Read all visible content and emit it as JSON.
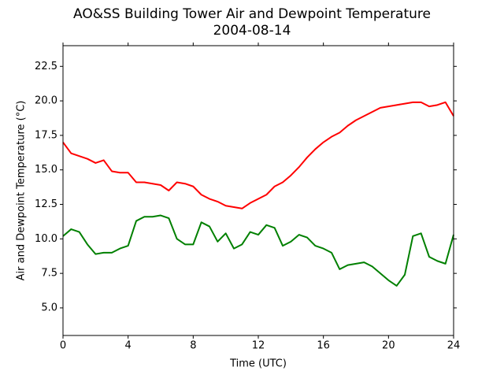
{
  "chart_data": {
    "type": "line",
    "title": "AO&SS Building Tower Air and Dewpoint Temperature",
    "subtitle": "2004-08-14",
    "x_label": "Time (UTC)",
    "y_label": "Air and Dewpoint Temperature (°C)",
    "x": [
      0,
      0.5,
      1,
      1.5,
      2,
      2.5,
      3,
      3.5,
      4,
      4.5,
      5,
      5.5,
      6,
      6.5,
      7,
      7.5,
      8,
      8.5,
      9,
      9.5,
      10,
      10.5,
      11,
      11.5,
      12,
      12.5,
      13,
      13.5,
      14,
      14.5,
      15,
      15.5,
      16,
      16.5,
      17,
      17.5,
      18,
      18.5,
      19,
      19.5,
      20,
      20.5,
      21,
      21.5,
      22,
      22.5,
      23,
      23.5,
      24
    ],
    "series": [
      {
        "color": "#ff0000",
        "values": [
          17.0,
          16.2,
          16.0,
          15.8,
          15.5,
          15.7,
          14.9,
          14.8,
          14.8,
          14.1,
          14.1,
          14.0,
          13.9,
          13.5,
          14.1,
          14.0,
          13.8,
          13.2,
          12.9,
          12.7,
          12.4,
          12.3,
          12.2,
          12.6,
          12.9,
          13.2,
          13.8,
          14.1,
          14.6,
          15.2,
          15.9,
          16.5,
          17.0,
          17.4,
          17.7,
          18.2,
          18.6,
          18.9,
          19.2,
          19.5,
          19.6,
          19.7,
          19.8,
          19.9,
          19.9,
          19.6,
          19.7,
          19.9,
          18.9
        ]
      },
      {
        "color": "#008000",
        "values": [
          10.2,
          10.7,
          10.5,
          9.6,
          8.9,
          9.0,
          9.0,
          9.3,
          9.5,
          11.3,
          11.6,
          11.6,
          11.7,
          11.5,
          10.0,
          9.6,
          9.6,
          11.2,
          10.9,
          9.8,
          10.4,
          9.3,
          9.6,
          10.5,
          10.3,
          11.0,
          10.8,
          9.5,
          9.8,
          10.3,
          10.1,
          9.5,
          9.3,
          9.0,
          7.8,
          8.1,
          8.2,
          8.3,
          8.0,
          7.5,
          7.0,
          6.6,
          7.4,
          10.2,
          10.4,
          8.7,
          8.4,
          8.2,
          10.3
        ]
      }
    ],
    "xlim": [
      0,
      24
    ],
    "xticks": [
      0,
      4,
      8,
      12,
      16,
      20,
      24
    ],
    "ylim": [
      3,
      24
    ],
    "yticks": [
      {
        "value": 5,
        "label": "5.0"
      },
      7.5,
      {
        "value": 10,
        "label": "10.0"
      },
      12.5,
      {
        "value": 15,
        "label": "15.0"
      },
      17.5,
      {
        "value": 20,
        "label": "20.0"
      },
      22.5
    ],
    "grid": false
  }
}
